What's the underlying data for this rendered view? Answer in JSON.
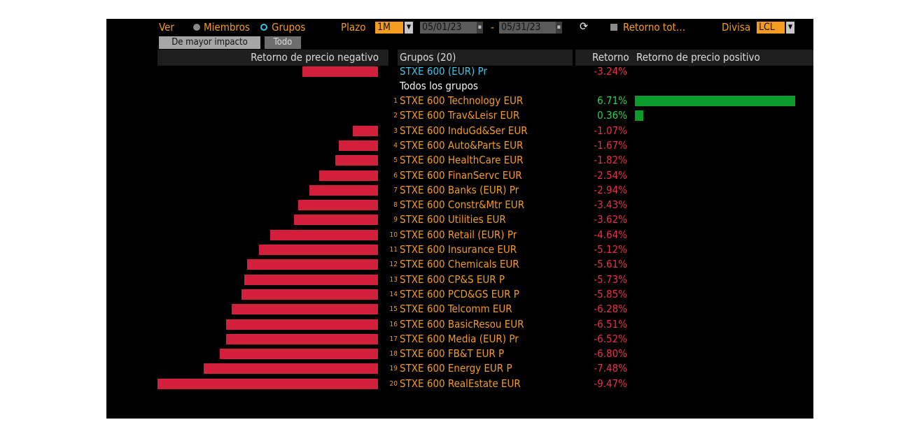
{
  "toolbar": {
    "ver_label": "Ver",
    "members_label": "Miembros",
    "groups_label": "Grupos",
    "plazo_label": "Plazo",
    "plazo_value": "1M",
    "date_start": "05/01/23",
    "date_sep": "-",
    "date_end": "05/31/23",
    "refresh_icon": "refresh-icon",
    "return_total_label": "Retorno tot…",
    "divisa_label": "Divisa",
    "divisa_value": "LCL"
  },
  "tabs": [
    "De mayor impacto",
    "Todo"
  ],
  "colors": {
    "negative": "#d21f3c",
    "positive": "#0a9b2c",
    "accent": "#f39c1f",
    "benchmark": "#39c6ea"
  },
  "chart_data": {
    "type": "bar",
    "orientation": "horizontal",
    "header": {
      "neg_label": "Retorno de precio negativo",
      "groups_label": "Grupos (20)",
      "return_label": "Retorno",
      "pos_label": "Retorno de precio positivo"
    },
    "benchmark": {
      "name": "STXE 600 (EUR) Pr",
      "value": -3.24,
      "label": "-3.24%"
    },
    "all_groups_label": "Todos los grupos",
    "rows": [
      {
        "rank": "1",
        "name": "STXE 600 Technology EUR",
        "value": 6.71,
        "label": "6.71%"
      },
      {
        "rank": "2",
        "name": "STXE 600 Trav&Leisr EUR",
        "value": 0.36,
        "label": "0.36%"
      },
      {
        "rank": "3",
        "name": "STXE 600 InduGd&Ser EUR",
        "value": -1.07,
        "label": "-1.07%"
      },
      {
        "rank": "4",
        "name": "STXE 600 Auto&Parts EUR",
        "value": -1.67,
        "label": "-1.67%"
      },
      {
        "rank": "5",
        "name": "STXE 600 HealthCare EUR",
        "value": -1.82,
        "label": "-1.82%"
      },
      {
        "rank": "6",
        "name": "STXE 600 FinanServc EUR",
        "value": -2.54,
        "label": "-2.54%"
      },
      {
        "rank": "7",
        "name": "STXE 600 Banks (EUR) Pr",
        "value": -2.94,
        "label": "-2.94%"
      },
      {
        "rank": "8",
        "name": "STXE 600 Constr&Mtr EUR",
        "value": -3.43,
        "label": "-3.43%"
      },
      {
        "rank": "9",
        "name": "STXE 600 Utilities EUR",
        "value": -3.62,
        "label": "-3.62%"
      },
      {
        "rank": "10",
        "name": "STXE 600 Retail (EUR) Pr",
        "value": -4.64,
        "label": "-4.64%"
      },
      {
        "rank": "11",
        "name": "STXE 600 Insurance EUR",
        "value": -5.12,
        "label": "-5.12%"
      },
      {
        "rank": "12",
        "name": "STXE 600 Chemicals EUR",
        "value": -5.61,
        "label": "-5.61%"
      },
      {
        "rank": "13",
        "name": "STXE 600 CP&S EUR P",
        "value": -5.73,
        "label": "-5.73%"
      },
      {
        "rank": "14",
        "name": "STXE 600 PCD&GS EUR P",
        "value": -5.85,
        "label": "-5.85%"
      },
      {
        "rank": "15",
        "name": "STXE 600 Telcomm EUR",
        "value": -6.28,
        "label": "-6.28%"
      },
      {
        "rank": "16",
        "name": "STXE 600 BasicResou EUR",
        "value": -6.51,
        "label": "-6.51%"
      },
      {
        "rank": "17",
        "name": "STXE 600 Media (EUR) Pr",
        "value": -6.52,
        "label": "-6.52%"
      },
      {
        "rank": "18",
        "name": "STXE 600 FB&T EUR P",
        "value": -6.8,
        "label": "-6.80%"
      },
      {
        "rank": "19",
        "name": "STXE 600 Energy EUR P",
        "value": -7.48,
        "label": "-7.48%"
      },
      {
        "rank": "20",
        "name": "STXE 600 RealEstate EUR",
        "value": -9.47,
        "label": "-9.47%"
      }
    ]
  }
}
